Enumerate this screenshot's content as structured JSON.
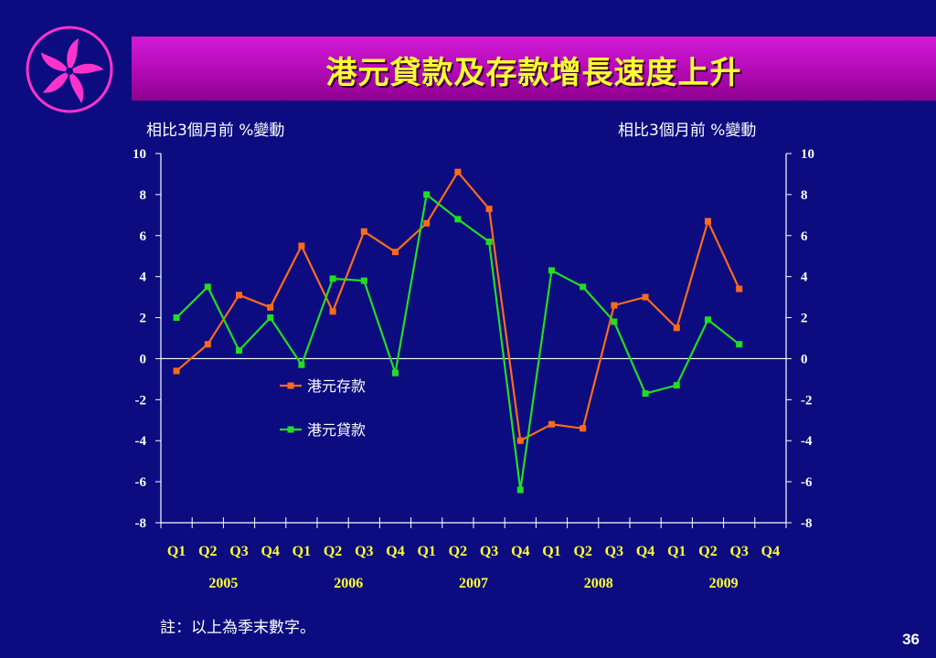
{
  "title": "港元貸款及存款增長速度上升",
  "note": "註：以上為季末數字。",
  "page_number": "36",
  "colors": {
    "background": "#0c0c80",
    "title_bar": "#b90cbb",
    "title_text": "#ffff33",
    "deposits": "#ff6a1a",
    "loans": "#22dd22",
    "logo": "#ff33cc"
  },
  "logo_icon": "bauhinia-flower-icon",
  "chart_data": {
    "type": "line",
    "ylabel_left": "相比3個月前 %變動",
    "ylabel_right": "相比3個月前 %變動",
    "ylim": [
      -8,
      10
    ],
    "yticks": [
      "10",
      "8",
      "6",
      "4",
      "2",
      "0",
      "-2",
      "-4",
      "-6",
      "-8"
    ],
    "categories": [
      "Q1",
      "Q2",
      "Q3",
      "Q4",
      "Q1",
      "Q2",
      "Q3",
      "Q4",
      "Q1",
      "Q2",
      "Q3",
      "Q4",
      "Q1",
      "Q2",
      "Q3",
      "Q4",
      "Q1",
      "Q2",
      "Q3",
      "Q4"
    ],
    "years": [
      "2005",
      "2006",
      "2007",
      "2008",
      "2009"
    ],
    "legend_position": "inside-left",
    "grid": false,
    "series": [
      {
        "name": "港元存款",
        "color": "#ff6a1a",
        "values": [
          -0.6,
          0.7,
          3.1,
          2.5,
          5.5,
          2.3,
          6.2,
          5.2,
          6.6,
          9.1,
          7.3,
          -4.0,
          -3.2,
          -3.4,
          2.6,
          3.0,
          1.5,
          6.7,
          3.4,
          null
        ]
      },
      {
        "name": "港元貸款",
        "color": "#22dd22",
        "values": [
          2.0,
          3.5,
          0.4,
          2.0,
          -0.3,
          3.9,
          3.8,
          -0.7,
          8.0,
          6.8,
          5.7,
          -6.4,
          4.3,
          3.5,
          1.8,
          -1.7,
          -1.3,
          1.9,
          0.7,
          null
        ]
      }
    ]
  }
}
